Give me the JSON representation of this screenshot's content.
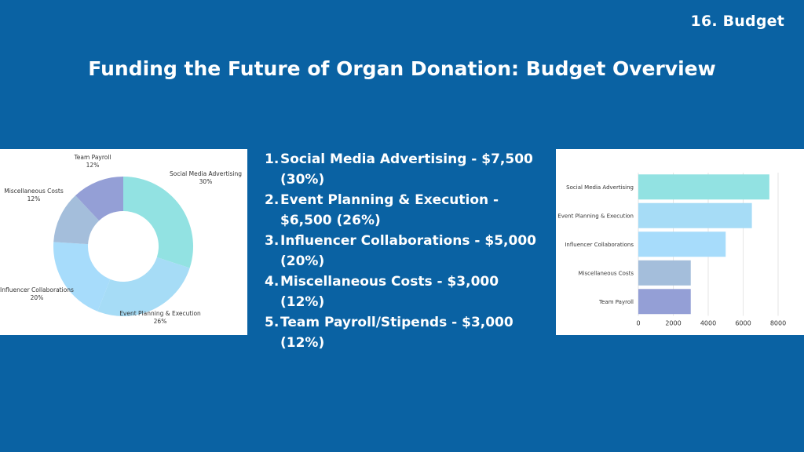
{
  "header": {
    "slide_label": "16. Budget",
    "title": "Funding the Future of Organ Donation: Budget Overview"
  },
  "budget_list": [
    {
      "number": "1.",
      "text": "Social Media Advertising - $7,500 (30%)"
    },
    {
      "number": "2.",
      "text": "Event Planning & Execution - $6,500 (26%)"
    },
    {
      "number": "3.",
      "text": "Influencer Collaborations - $5,000 (20%)"
    },
    {
      "number": "4.",
      "text": "Miscellaneous Costs - $3,000 (12%)"
    },
    {
      "number": "5.",
      "text": "Team Payroll/Stipends - $3,000 (12%)"
    }
  ],
  "chart_data": [
    {
      "type": "pie",
      "variant": "donut",
      "categories": [
        "Social Media Advertising",
        "Event Planning & Execution",
        "Influencer Collaborations",
        "Miscellaneous Costs",
        "Team Payroll"
      ],
      "values": [
        30,
        26,
        20,
        12,
        12
      ],
      "labels": [
        "30%",
        "26%",
        "20%",
        "12%",
        "12%"
      ],
      "colors": [
        "#92e2e2",
        "#a6dcf6",
        "#a7dcfb",
        "#a4bedb",
        "#949fd6"
      ]
    },
    {
      "type": "bar",
      "orientation": "horizontal",
      "categories": [
        "Social Media Advertising",
        "Event Planning & Execution",
        "Influencer Collaborations",
        "Miscellaneous Costs",
        "Team Payroll"
      ],
      "values": [
        7500,
        6500,
        5000,
        3000,
        3000
      ],
      "xlim": [
        0,
        8000
      ],
      "xticks": [
        0,
        2000,
        4000,
        6000,
        8000
      ],
      "grid": true,
      "colors": [
        "#92e2e2",
        "#a6dcf6",
        "#a7dcfb",
        "#a4bedb",
        "#949fd6"
      ]
    }
  ]
}
